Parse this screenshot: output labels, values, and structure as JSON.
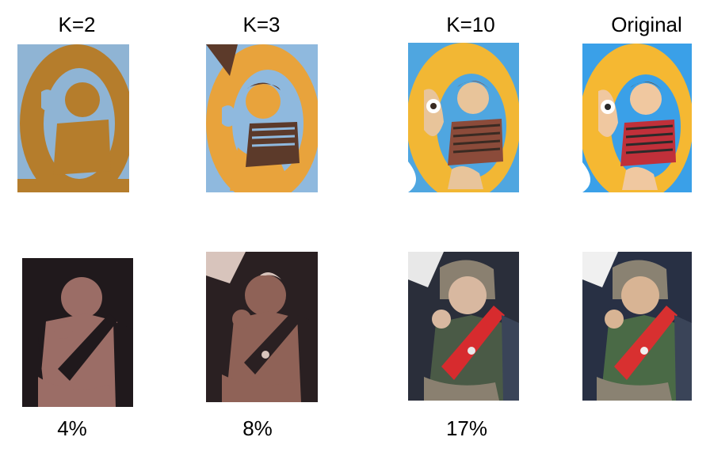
{
  "column_labels": [
    "K=2",
    "K=3",
    "K=10",
    "Original"
  ],
  "row2_percentages": [
    "4%",
    "8%",
    "17%"
  ],
  "row1_palettes": {
    "k2": [
      "#b57d2c",
      "#8fb4d4"
    ],
    "k3": [
      "#e8a33c",
      "#8fb9de",
      "#5c3a2a"
    ],
    "k10": [
      "#f2b734",
      "#4fa6e0",
      "#8b4b3a",
      "#e8c49a",
      "#3a2a22",
      "#ffffff"
    ],
    "original": [
      "#f5b832",
      "#3aa0e8",
      "#c0303a",
      "#f0c8a0",
      "#2a2a2a",
      "#ffffff"
    ]
  },
  "row2_palettes": {
    "k2": [
      "#9b6d66",
      "#20191c"
    ],
    "k3": [
      "#8f6257",
      "#2a2022",
      "#d8c4bc"
    ],
    "k10": [
      "#d72b2e",
      "#2a2e3a",
      "#8a8070",
      "#d8b8a0",
      "#4a5a46",
      "#e8e8e8"
    ],
    "original": [
      "#d83030",
      "#283044",
      "#8a8272",
      "#d8b494",
      "#4a6a46",
      "#f0f0f0"
    ]
  }
}
